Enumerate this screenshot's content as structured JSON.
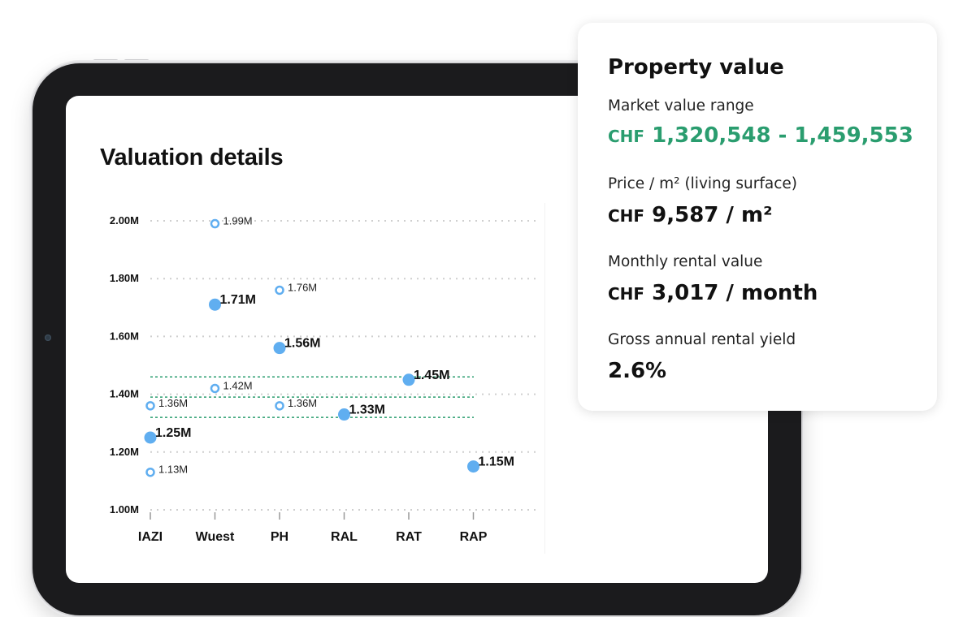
{
  "valuation": {
    "title": "Valuation details"
  },
  "chart_data": {
    "type": "scatter",
    "categories": [
      "IAZI",
      "Wuest",
      "PH",
      "RAL",
      "RAT",
      "RAP"
    ],
    "y_tick_labels": [
      "2.00M",
      "1.80M",
      "1.60M",
      "1.40M",
      "1.20M",
      "1.00M"
    ],
    "ylim": [
      1.0,
      2.0
    ],
    "grid": true,
    "band_lines": [
      1.46,
      1.39,
      1.32
    ],
    "series": [
      {
        "marker": "filled",
        "color": "#60aef0",
        "points": [
          {
            "x": "IAZI",
            "y": 1.25,
            "label": "1.25M"
          },
          {
            "x": "Wuest",
            "y": 1.71,
            "label": "1.71M"
          },
          {
            "x": "PH",
            "y": 1.56,
            "label": "1.56M"
          },
          {
            "x": "RAL",
            "y": 1.33,
            "label": "1.33M"
          },
          {
            "x": "RAT",
            "y": 1.45,
            "label": "1.45M"
          },
          {
            "x": "RAP",
            "y": 1.15,
            "label": "1.15M"
          }
        ]
      },
      {
        "marker": "open",
        "color": "#60aef0",
        "points": [
          {
            "x": "IAZI",
            "y": 1.36,
            "label": "1.36M"
          },
          {
            "x": "IAZI",
            "y": 1.13,
            "label": "1.13M"
          },
          {
            "x": "Wuest",
            "y": 1.99,
            "label": "1.99M"
          },
          {
            "x": "Wuest",
            "y": 1.42,
            "label": "1.42M"
          },
          {
            "x": "PH",
            "y": 1.76,
            "label": "1.76M"
          },
          {
            "x": "PH",
            "y": 1.36,
            "label": "1.36M"
          }
        ]
      }
    ],
    "band_color": "#2a9d6f"
  },
  "property_card": {
    "title": "Property value",
    "market_range_label": "Market value range",
    "market_range_currency": "CHF",
    "market_range_value": "1,320,548 - 1,459,553",
    "price_m2_label": "Price / m² (living surface)",
    "price_m2_currency": "CHF",
    "price_m2_value": "9,587 / m²",
    "rental_label": "Monthly rental value",
    "rental_currency": "CHF",
    "rental_value": "3,017 / month",
    "yield_label": "Gross annual rental yield",
    "yield_value": "2.6%",
    "accent_color": "#2a9d6f"
  }
}
